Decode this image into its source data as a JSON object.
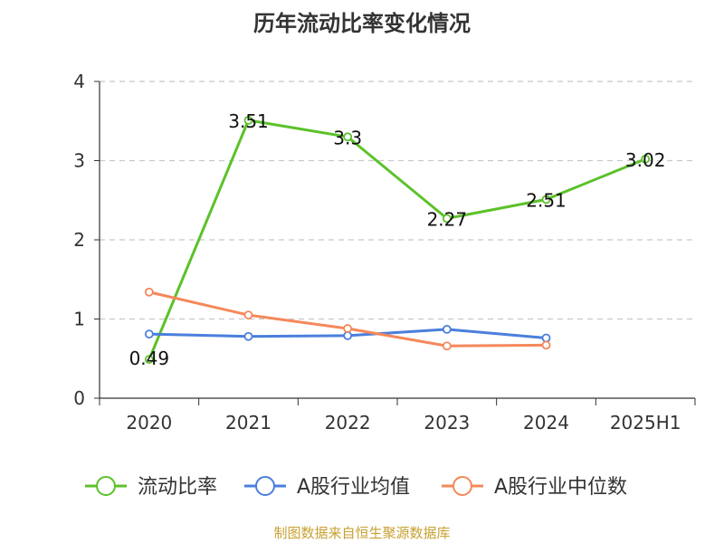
{
  "chart_data": {
    "type": "line",
    "title": "历年流动比率变化情况",
    "categories": [
      "2020",
      "2021",
      "2022",
      "2023",
      "2024",
      "2025H1"
    ],
    "y_ticks": [
      "0",
      "1",
      "2",
      "3",
      "4"
    ],
    "ylim": [
      0,
      4
    ],
    "grid": true,
    "legend_position": "bottom",
    "series": [
      {
        "name": "流动比率",
        "color": "#5cc12a",
        "values": [
          0.49,
          3.51,
          3.3,
          2.27,
          2.51,
          3.02
        ],
        "labels": [
          "0.49",
          "3.51",
          "3.3",
          "2.27",
          "2.51",
          "3.02"
        ]
      },
      {
        "name": "A股行业均值",
        "color": "#4a7fdc",
        "values": [
          0.81,
          0.78,
          0.79,
          0.87,
          0.76,
          null
        ]
      },
      {
        "name": "A股行业中位数",
        "color": "#f5885a",
        "values": [
          1.34,
          1.05,
          0.88,
          0.66,
          0.67,
          null
        ]
      }
    ]
  },
  "source": "制图数据来自恒生聚源数据库"
}
